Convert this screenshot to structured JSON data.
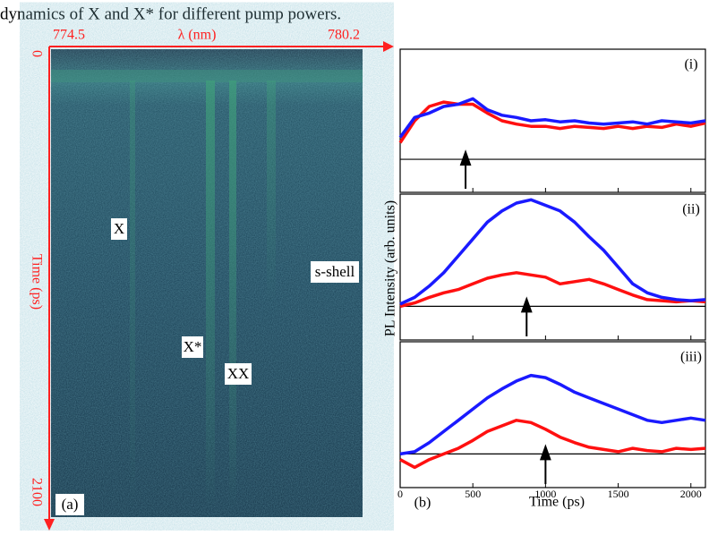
{
  "caption": "dynamics of X and X* for different pump powers.",
  "streak": {
    "panel_label": "(a)",
    "x_label": "λ (nm)",
    "x_start": "774.5",
    "x_end": "780.2",
    "y_label": "Time (ps)",
    "y_start": "0",
    "y_end": "2100",
    "labels": [
      "X",
      "X*",
      "XX",
      "s-shell"
    ]
  },
  "figure_b": {
    "panel_label": "(b)",
    "xlabel": "Time (ps)",
    "ylabel": "PL Intensity (arb. units)"
  },
  "chart_data": [
    {
      "type": "line",
      "panel": "(i)",
      "xlim": [
        0,
        2100
      ],
      "xticks": [
        0,
        500,
        1000,
        1500,
        2000
      ],
      "ylim": [
        -0.3,
        1
      ],
      "arrow_x": 450,
      "x": [
        0,
        100,
        200,
        300,
        400,
        500,
        600,
        700,
        800,
        900,
        1000,
        1100,
        1200,
        1300,
        1400,
        1500,
        1600,
        1700,
        1800,
        1900,
        2000,
        2100
      ],
      "series": [
        {
          "name": "red",
          "color": "#ff1010",
          "values": [
            0.15,
            0.35,
            0.48,
            0.52,
            0.5,
            0.5,
            0.42,
            0.35,
            0.32,
            0.3,
            0.3,
            0.28,
            0.3,
            0.29,
            0.28,
            0.3,
            0.28,
            0.3,
            0.29,
            0.32,
            0.3,
            0.33
          ]
        },
        {
          "name": "blue",
          "color": "#1a1aff",
          "values": [
            0.2,
            0.38,
            0.42,
            0.48,
            0.5,
            0.55,
            0.45,
            0.4,
            0.38,
            0.35,
            0.36,
            0.34,
            0.35,
            0.33,
            0.32,
            0.33,
            0.34,
            0.32,
            0.35,
            0.34,
            0.33,
            0.35
          ]
        }
      ]
    },
    {
      "type": "line",
      "panel": "(ii)",
      "xlim": [
        0,
        2100
      ],
      "xticks": [
        0,
        500,
        1000,
        1500,
        2000
      ],
      "ylim": [
        -0.3,
        1
      ],
      "arrow_x": 870,
      "x": [
        0,
        100,
        200,
        300,
        400,
        500,
        600,
        700,
        800,
        900,
        1000,
        1100,
        1200,
        1300,
        1400,
        1500,
        1600,
        1700,
        1800,
        1900,
        2000,
        2100
      ],
      "series": [
        {
          "name": "red",
          "color": "#ff1010",
          "values": [
            0.0,
            0.03,
            0.08,
            0.12,
            0.15,
            0.2,
            0.25,
            0.28,
            0.3,
            0.28,
            0.26,
            0.2,
            0.22,
            0.24,
            0.2,
            0.15,
            0.1,
            0.06,
            0.05,
            0.04,
            0.05,
            0.04
          ]
        },
        {
          "name": "blue",
          "color": "#1a1aff",
          "values": [
            0.02,
            0.08,
            0.18,
            0.3,
            0.45,
            0.6,
            0.75,
            0.85,
            0.92,
            0.95,
            0.9,
            0.85,
            0.75,
            0.62,
            0.5,
            0.35,
            0.2,
            0.12,
            0.08,
            0.06,
            0.05,
            0.06
          ]
        }
      ]
    },
    {
      "type": "line",
      "panel": "(iii)",
      "xlim": [
        0,
        2100
      ],
      "xticks": [
        0,
        500,
        1000,
        1500,
        2000
      ],
      "ylim": [
        -0.3,
        1
      ],
      "arrow_x": 1000,
      "x": [
        0,
        100,
        200,
        300,
        400,
        500,
        600,
        700,
        800,
        900,
        1000,
        1100,
        1200,
        1300,
        1400,
        1500,
        1600,
        1700,
        1800,
        1900,
        2000,
        2100
      ],
      "series": [
        {
          "name": "red",
          "color": "#ff1010",
          "values": [
            -0.05,
            -0.12,
            -0.05,
            0.0,
            0.05,
            0.12,
            0.2,
            0.25,
            0.3,
            0.28,
            0.22,
            0.15,
            0.1,
            0.06,
            0.04,
            0.02,
            0.05,
            0.03,
            0.02,
            0.05,
            0.04,
            0.05
          ]
        },
        {
          "name": "blue",
          "color": "#1a1aff",
          "values": [
            0.0,
            0.02,
            0.1,
            0.2,
            0.3,
            0.4,
            0.5,
            0.58,
            0.65,
            0.7,
            0.68,
            0.62,
            0.55,
            0.5,
            0.45,
            0.4,
            0.35,
            0.3,
            0.28,
            0.3,
            0.32,
            0.3
          ]
        }
      ]
    }
  ]
}
